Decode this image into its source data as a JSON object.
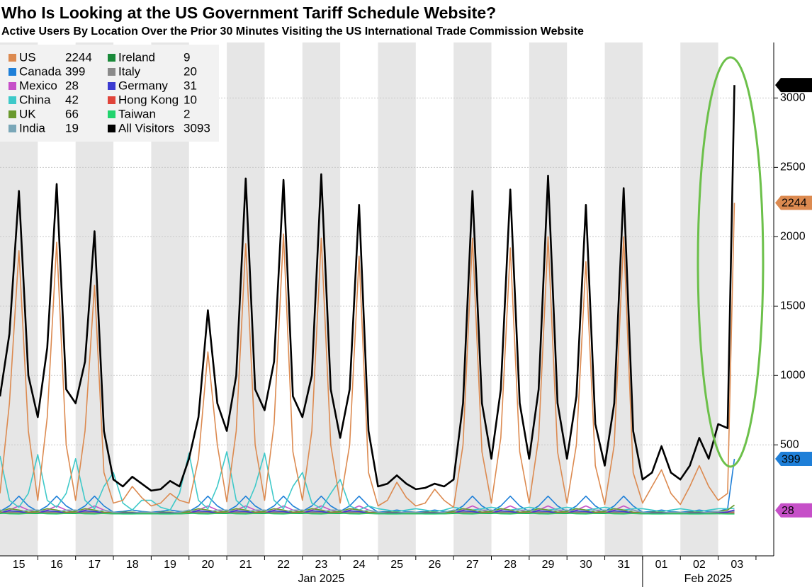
{
  "chart_data": {
    "type": "line",
    "title": "Who Is Looking at the US Government Tariff Schedule Website?",
    "subtitle": "Active Users By Location Over the Prior 30 Minutes Visiting the US International Trade Commission Website",
    "categories": [
      "15",
      "16",
      "17",
      "18",
      "19",
      "20",
      "21",
      "22",
      "23",
      "24",
      "25",
      "26",
      "27",
      "28",
      "29",
      "30",
      "31",
      "01",
      "02",
      "03"
    ],
    "x_group_labels": [
      "Jan 2025",
      "Feb 2025"
    ],
    "x": [
      0,
      0.25,
      0.5,
      0.75,
      1,
      1.25,
      1.5,
      1.75,
      2,
      2.25,
      2.5,
      2.75,
      3,
      3.25,
      3.5,
      3.75,
      4,
      4.25,
      4.5,
      4.75,
      5,
      5.25,
      5.5,
      5.75,
      6,
      6.25,
      6.5,
      6.75,
      7,
      7.25,
      7.5,
      7.75,
      8,
      8.25,
      8.5,
      8.75,
      9,
      9.25,
      9.5,
      9.75,
      10,
      10.25,
      10.5,
      10.75,
      11,
      11.25,
      11.5,
      11.75,
      12,
      12.25,
      12.5,
      12.75,
      13,
      13.25,
      13.5,
      13.75,
      14,
      14.25,
      14.5,
      14.75,
      15,
      15.25,
      15.5,
      15.75,
      16,
      16.25,
      16.5,
      16.75,
      17,
      17.25,
      17.5,
      17.75,
      18,
      18.25,
      18.5,
      18.75,
      19,
      19.25,
      19.43
    ],
    "xlim": [
      0,
      20.47
    ],
    "ylim": [
      -300,
      3400
    ],
    "yticks": [
      500,
      1000,
      1500,
      2000,
      2500,
      3000
    ],
    "grid": true,
    "legend": "upper left",
    "series": [
      {
        "name": "US",
        "color": "#dc8a50",
        "values": [
          150,
          800,
          1900,
          600,
          100,
          700,
          1960,
          500,
          100,
          600,
          1650,
          300,
          80,
          100,
          200,
          120,
          60,
          80,
          150,
          100,
          80,
          400,
          1170,
          500,
          90,
          600,
          1950,
          500,
          100,
          650,
          2020,
          450,
          100,
          600,
          1990,
          500,
          80,
          500,
          1860,
          300,
          60,
          100,
          230,
          120,
          60,
          80,
          180,
          100,
          50,
          500,
          1990,
          450,
          80,
          550,
          1920,
          450,
          80,
          550,
          2000,
          450,
          80,
          500,
          1820,
          350,
          70,
          500,
          2000,
          300,
          80,
          200,
          320,
          150,
          70,
          200,
          350,
          200,
          100,
          150,
          2244
        ]
      },
      {
        "name": "Canada",
        "color": "#1e7fd8",
        "values": [
          20,
          60,
          130,
          60,
          20,
          60,
          130,
          60,
          20,
          60,
          130,
          60,
          15,
          20,
          30,
          20,
          15,
          20,
          30,
          20,
          20,
          60,
          130,
          60,
          20,
          60,
          130,
          60,
          20,
          60,
          130,
          60,
          20,
          60,
          130,
          60,
          20,
          60,
          130,
          60,
          15,
          20,
          30,
          20,
          15,
          20,
          30,
          20,
          20,
          60,
          130,
          60,
          20,
          60,
          130,
          60,
          20,
          60,
          130,
          60,
          20,
          60,
          130,
          60,
          20,
          60,
          130,
          60,
          15,
          20,
          30,
          20,
          15,
          20,
          30,
          20,
          20,
          40,
          399
        ]
      },
      {
        "name": "Mexico",
        "color": "#c64fc8",
        "values": [
          10,
          30,
          60,
          30,
          10,
          30,
          60,
          30,
          10,
          30,
          60,
          30,
          10,
          10,
          15,
          10,
          10,
          10,
          15,
          10,
          10,
          30,
          60,
          30,
          10,
          30,
          60,
          30,
          10,
          30,
          60,
          30,
          10,
          30,
          60,
          30,
          10,
          30,
          60,
          30,
          10,
          10,
          15,
          10,
          10,
          10,
          15,
          10,
          10,
          30,
          60,
          30,
          10,
          30,
          60,
          30,
          10,
          30,
          60,
          30,
          10,
          30,
          60,
          30,
          10,
          30,
          60,
          30,
          10,
          10,
          15,
          10,
          10,
          10,
          15,
          10,
          10,
          20,
          28
        ]
      },
      {
        "name": "China",
        "color": "#3ec9c9",
        "values": [
          420,
          100,
          50,
          150,
          430,
          100,
          50,
          150,
          400,
          100,
          40,
          200,
          300,
          80,
          30,
          100,
          100,
          50,
          30,
          150,
          440,
          100,
          40,
          200,
          450,
          100,
          40,
          200,
          440,
          100,
          40,
          200,
          300,
          80,
          40,
          150,
          250,
          60,
          30,
          60,
          40,
          30,
          20,
          30,
          40,
          30,
          20,
          30,
          50,
          40,
          30,
          40,
          50,
          40,
          30,
          40,
          50,
          40,
          30,
          40,
          50,
          40,
          30,
          40,
          50,
          40,
          30,
          40,
          40,
          30,
          20,
          30,
          40,
          30,
          20,
          30,
          40,
          40,
          42
        ]
      },
      {
        "name": "UK",
        "color": "#6a9a2e",
        "values": [
          20,
          40,
          30,
          15,
          20,
          40,
          30,
          15,
          20,
          40,
          30,
          15,
          10,
          15,
          15,
          10,
          10,
          15,
          15,
          10,
          20,
          40,
          30,
          15,
          20,
          40,
          30,
          15,
          20,
          40,
          30,
          15,
          20,
          40,
          30,
          15,
          20,
          40,
          30,
          15,
          10,
          15,
          15,
          10,
          10,
          15,
          15,
          10,
          20,
          40,
          30,
          15,
          20,
          40,
          30,
          15,
          20,
          40,
          30,
          15,
          20,
          40,
          30,
          15,
          20,
          40,
          30,
          15,
          10,
          15,
          15,
          10,
          10,
          15,
          15,
          10,
          20,
          30,
          66
        ]
      },
      {
        "name": "India",
        "color": "#7aa7b8",
        "values": [
          30,
          20,
          15,
          30,
          30,
          20,
          15,
          30,
          30,
          20,
          15,
          30,
          15,
          10,
          10,
          15,
          15,
          10,
          10,
          15,
          30,
          20,
          15,
          30,
          30,
          20,
          15,
          30,
          30,
          20,
          15,
          30,
          30,
          20,
          15,
          30,
          30,
          20,
          15,
          30,
          15,
          10,
          10,
          15,
          15,
          10,
          10,
          15,
          30,
          20,
          15,
          30,
          30,
          20,
          15,
          30,
          30,
          20,
          15,
          30,
          30,
          20,
          15,
          30,
          30,
          20,
          15,
          30,
          15,
          10,
          10,
          15,
          15,
          10,
          10,
          15,
          20,
          15,
          19
        ]
      },
      {
        "name": "Ireland",
        "color": "#1a8a3a",
        "values": [
          5,
          10,
          8,
          5,
          5,
          10,
          8,
          5,
          5,
          10,
          8,
          5,
          3,
          4,
          4,
          3,
          3,
          4,
          4,
          3,
          5,
          10,
          8,
          5,
          5,
          10,
          8,
          5,
          5,
          10,
          8,
          5,
          5,
          10,
          8,
          5,
          5,
          10,
          8,
          5,
          3,
          4,
          4,
          3,
          3,
          4,
          4,
          3,
          5,
          10,
          8,
          5,
          5,
          10,
          8,
          5,
          5,
          10,
          8,
          5,
          5,
          10,
          8,
          5,
          5,
          10,
          8,
          5,
          3,
          4,
          4,
          3,
          3,
          4,
          4,
          3,
          5,
          6,
          9
        ]
      },
      {
        "name": "Italy",
        "color": "#8a8a8a",
        "values": [
          8,
          15,
          12,
          6,
          8,
          15,
          12,
          6,
          8,
          15,
          12,
          6,
          4,
          5,
          5,
          4,
          4,
          5,
          5,
          4,
          8,
          15,
          12,
          6,
          8,
          15,
          12,
          6,
          8,
          15,
          12,
          6,
          8,
          15,
          12,
          6,
          8,
          15,
          12,
          6,
          4,
          5,
          5,
          4,
          4,
          5,
          5,
          4,
          8,
          15,
          12,
          6,
          8,
          15,
          12,
          6,
          8,
          15,
          12,
          6,
          8,
          15,
          12,
          6,
          8,
          15,
          12,
          6,
          4,
          5,
          5,
          4,
          4,
          5,
          5,
          4,
          8,
          10,
          20
        ]
      },
      {
        "name": "Germany",
        "color": "#3b3bd1",
        "values": [
          10,
          25,
          20,
          8,
          10,
          25,
          20,
          8,
          10,
          25,
          20,
          8,
          5,
          8,
          8,
          5,
          5,
          8,
          8,
          5,
          10,
          25,
          20,
          8,
          10,
          25,
          20,
          8,
          10,
          25,
          20,
          8,
          10,
          25,
          20,
          8,
          10,
          25,
          20,
          8,
          5,
          8,
          8,
          5,
          5,
          8,
          8,
          5,
          10,
          25,
          20,
          8,
          10,
          25,
          20,
          8,
          10,
          25,
          20,
          8,
          10,
          25,
          20,
          8,
          10,
          25,
          20,
          8,
          5,
          8,
          8,
          5,
          5,
          8,
          8,
          5,
          10,
          15,
          31
        ]
      },
      {
        "name": "Hong Kong",
        "color": "#e0443a",
        "values": [
          12,
          6,
          4,
          10,
          12,
          6,
          4,
          10,
          12,
          6,
          4,
          10,
          6,
          4,
          3,
          5,
          6,
          4,
          3,
          5,
          12,
          6,
          4,
          10,
          12,
          6,
          4,
          10,
          12,
          6,
          4,
          10,
          12,
          6,
          4,
          10,
          12,
          6,
          4,
          10,
          6,
          4,
          3,
          5,
          6,
          4,
          3,
          5,
          12,
          6,
          4,
          10,
          12,
          6,
          4,
          10,
          12,
          6,
          4,
          10,
          12,
          6,
          4,
          10,
          12,
          6,
          4,
          10,
          6,
          4,
          3,
          5,
          6,
          4,
          3,
          5,
          6,
          5,
          10
        ]
      },
      {
        "name": "Taiwan",
        "color": "#22d46e",
        "values": [
          8,
          3,
          2,
          6,
          8,
          3,
          2,
          6,
          8,
          3,
          2,
          6,
          4,
          2,
          2,
          3,
          4,
          2,
          2,
          3,
          8,
          3,
          2,
          6,
          8,
          3,
          2,
          6,
          8,
          3,
          2,
          6,
          8,
          3,
          2,
          6,
          8,
          3,
          2,
          6,
          4,
          2,
          2,
          3,
          4,
          2,
          2,
          3,
          8,
          3,
          2,
          6,
          8,
          3,
          2,
          6,
          8,
          3,
          2,
          6,
          8,
          3,
          2,
          6,
          8,
          3,
          2,
          6,
          4,
          2,
          2,
          3,
          4,
          2,
          2,
          3,
          3,
          2,
          2
        ]
      },
      {
        "name": "All Visitors",
        "color": "#000000",
        "values": [
          850,
          1300,
          2330,
          1000,
          700,
          1200,
          2380,
          900,
          800,
          1100,
          2040,
          600,
          250,
          200,
          270,
          220,
          170,
          180,
          240,
          200,
          400,
          700,
          1470,
          800,
          600,
          1000,
          2420,
          900,
          750,
          1100,
          2410,
          850,
          700,
          1000,
          2450,
          900,
          550,
          900,
          2230,
          600,
          200,
          220,
          280,
          220,
          180,
          190,
          220,
          200,
          250,
          800,
          2330,
          800,
          400,
          900,
          2340,
          800,
          400,
          900,
          2440,
          800,
          400,
          850,
          2230,
          650,
          350,
          800,
          2350,
          600,
          250,
          300,
          490,
          300,
          250,
          350,
          550,
          400,
          650,
          620,
          3093
        ]
      }
    ],
    "tagged_series": [
      11,
      0,
      1,
      2
    ]
  }
}
